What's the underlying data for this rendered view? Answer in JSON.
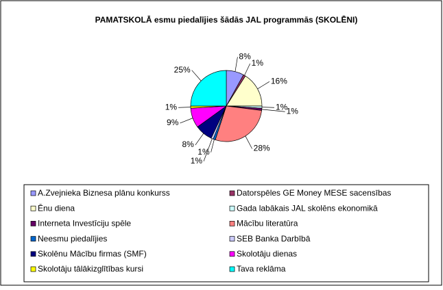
{
  "chart_data": {
    "type": "pie",
    "title": "PAMATSKOLĀ esmu piedalījies šādās JAL programmās (SKOLĒNI)",
    "categories": [
      "A.Zvejnieka Biznesa plānu konkurss",
      "Datorspēles GE Money MESE sacensības",
      "Ēnu diena",
      "Gada labākais JAL skolēns ekonomikā",
      "Interneta Investīciju spēle",
      "Mācību literatūra",
      "Neesmu piedalījies",
      "SEB Banka Darbībā",
      "Skolēnu Mācību firmas (SMF)",
      "Skolotāju dienas",
      "Skolotāju tālākizglītības kursi",
      "Tava reklāma"
    ],
    "values": [
      8,
      1,
      16,
      1,
      1,
      28,
      1,
      1,
      8,
      9,
      1,
      25
    ],
    "value_labels": [
      "8%",
      "1%",
      "16%",
      "1%",
      "1%",
      "28%",
      "1%",
      "1%",
      "8%",
      "9%",
      "1%",
      "25%"
    ],
    "colors": [
      "#9999FF",
      "#993366",
      "#FFFFCC",
      "#CCFFFF",
      "#660066",
      "#FF8080",
      "#0066CC",
      "#CCCCFF",
      "#000080",
      "#FF00FF",
      "#FFFF00",
      "#00FFFF"
    ],
    "legend": "bottom"
  }
}
